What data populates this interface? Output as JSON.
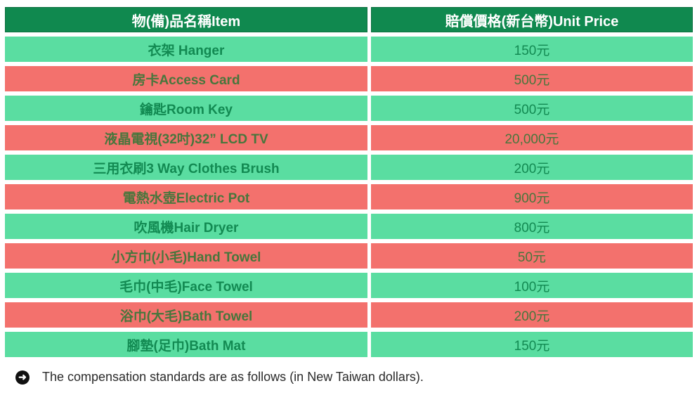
{
  "colors": {
    "header_bg": "#10894f",
    "header_border": "#0b7040",
    "header_text": "#ffffff",
    "green_row_bg": "#5adda1",
    "red_row_bg": "#f3716d",
    "text_on_green": "#128a52",
    "text_on_red": "#47763c",
    "icon_bg": "#111111",
    "icon_glyph": "#ffffff",
    "footer_text": "#2a2a2a"
  },
  "table": {
    "headers": [
      {
        "label": "物(備)品名稱Item"
      },
      {
        "label": "賠償價格(新台幣)Unit Price"
      }
    ],
    "rows": [
      {
        "item": "衣架 Hanger",
        "price": "150元",
        "variant": "green"
      },
      {
        "item": "房卡Access Card",
        "price": "500元",
        "variant": "red"
      },
      {
        "item": "鑰匙Room Key",
        "price": "500元",
        "variant": "green"
      },
      {
        "item": "液晶電視(32吋)32” LCD TV",
        "price": "20,000元",
        "variant": "red"
      },
      {
        "item": "三用衣刷3 Way Clothes Brush",
        "price": "200元",
        "variant": "green"
      },
      {
        "item": "電熱水壺Electric Pot",
        "price": "900元",
        "variant": "red"
      },
      {
        "item": "吹風機Hair Dryer",
        "price": "800元",
        "variant": "green"
      },
      {
        "item": "小方巾(小毛)Hand Towel",
        "price": "50元",
        "variant": "red"
      },
      {
        "item": "毛巾(中毛)Face Towel",
        "price": "100元",
        "variant": "green"
      },
      {
        "item": "浴巾(大毛)Bath Towel",
        "price": "200元",
        "variant": "red"
      },
      {
        "item": "腳墊(足巾)Bath Mat",
        "price": "150元",
        "variant": "green"
      }
    ]
  },
  "footer": {
    "icon": "arrow-right",
    "note": "The compensation standards are as follows (in New Taiwan dollars)."
  }
}
